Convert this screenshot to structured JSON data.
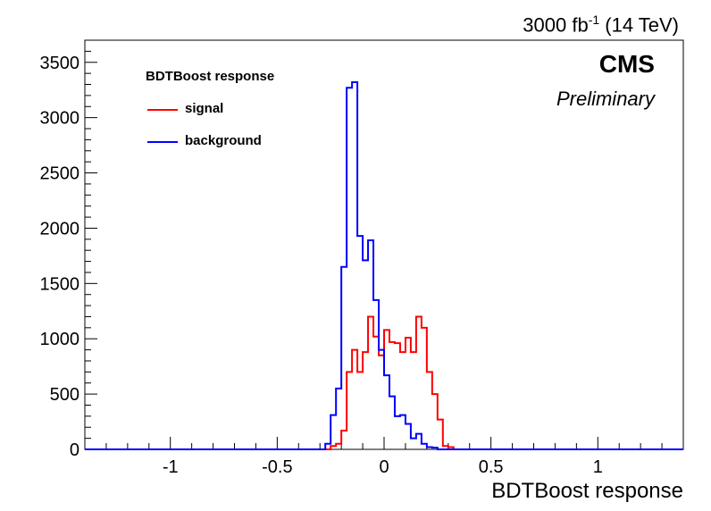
{
  "header": {
    "lumi_value": "3000 fb",
    "lumi_exp": "-1",
    "lumi_energy": " (14 TeV)",
    "experiment": "CMS",
    "status": "Preliminary"
  },
  "legend": {
    "title": "BDTBoost response",
    "entries": [
      {
        "label": "signal",
        "color": "#ff0000"
      },
      {
        "label": "background",
        "color": "#0000ff"
      }
    ]
  },
  "chart_data": {
    "type": "histogram-step",
    "xlabel": "BDTBoost response",
    "ylabel": "",
    "xlim": [
      -1.4,
      1.4
    ],
    "ylim": [
      0,
      3700
    ],
    "xticks": [
      -1,
      -0.5,
      0,
      0.5,
      1
    ],
    "xtick_labels": [
      "-1",
      "-0.5",
      "0",
      "0.5",
      "1"
    ],
    "yticks": [
      0,
      500,
      1000,
      1500,
      2000,
      2500,
      3000,
      3500
    ],
    "ytick_labels": [
      "0",
      "500",
      "1000",
      "1500",
      "2000",
      "2500",
      "3000",
      "3500"
    ],
    "bin_width": 0.025,
    "bin_start": -0.3,
    "series": [
      {
        "name": "signal",
        "color": "#ff0000",
        "values": [
          0,
          0,
          30,
          50,
          170,
          700,
          900,
          700,
          880,
          1200,
          1020,
          850,
          1080,
          970,
          960,
          880,
          1010,
          880,
          1200,
          1100,
          700,
          500,
          270,
          30,
          20,
          0,
          0
        ]
      },
      {
        "name": "background",
        "color": "#0000ff",
        "values": [
          0,
          50,
          310,
          550,
          1650,
          3270,
          3320,
          1930,
          1710,
          1890,
          1350,
          900,
          670,
          480,
          300,
          310,
          230,
          100,
          140,
          50,
          20,
          15,
          0,
          0,
          0,
          0,
          0
        ]
      }
    ]
  }
}
